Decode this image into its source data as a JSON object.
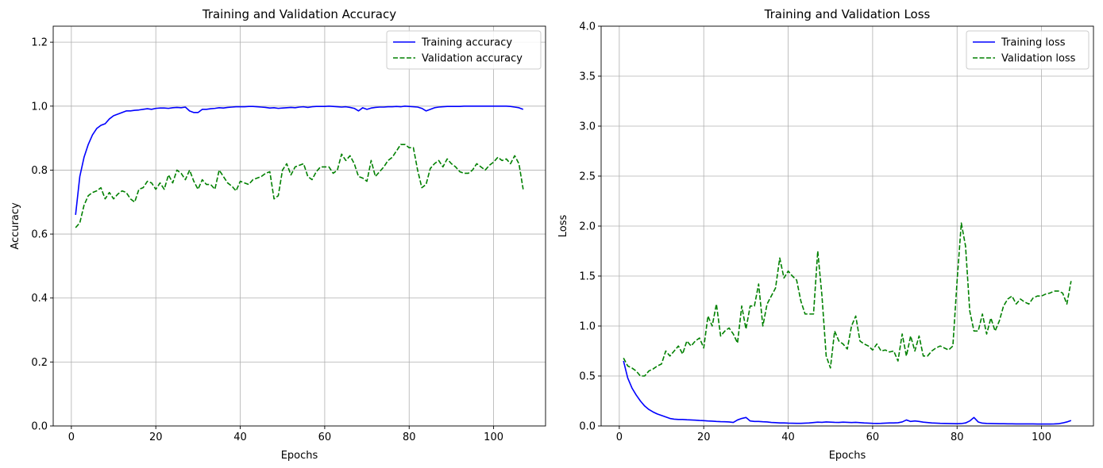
{
  "chart_data": [
    {
      "type": "line",
      "title": "Training and Validation Accuracy",
      "xlabel": "Epochs",
      "ylabel": "Accuracy",
      "xlim": [
        -4.3,
        112.3
      ],
      "ylim": [
        0.0,
        1.25
      ],
      "xticks": [
        0,
        20,
        40,
        60,
        80,
        100
      ],
      "yticks": [
        0.0,
        0.2,
        0.4,
        0.6,
        0.8,
        1.0,
        1.2
      ],
      "xtick_labels": [
        "0",
        "20",
        "40",
        "60",
        "80",
        "100"
      ],
      "ytick_labels": [
        "0.0",
        "0.2",
        "0.4",
        "0.6",
        "0.8",
        "1.0",
        "1.2"
      ],
      "grid": true,
      "legend_position": "upper-right",
      "series": [
        {
          "name": "Training accuracy",
          "color": "#0000ff",
          "dash": "solid",
          "x_start": 1,
          "values": [
            0.66,
            0.78,
            0.84,
            0.88,
            0.91,
            0.93,
            0.94,
            0.945,
            0.96,
            0.97,
            0.975,
            0.98,
            0.985,
            0.985,
            0.987,
            0.988,
            0.99,
            0.992,
            0.99,
            0.993,
            0.994,
            0.994,
            0.993,
            0.995,
            0.996,
            0.995,
            0.997,
            0.985,
            0.98,
            0.98,
            0.99,
            0.99,
            0.992,
            0.993,
            0.995,
            0.994,
            0.996,
            0.997,
            0.998,
            0.998,
            0.998,
            0.999,
            0.999,
            0.998,
            0.997,
            0.996,
            0.994,
            0.995,
            0.993,
            0.994,
            0.995,
            0.996,
            0.995,
            0.997,
            0.998,
            0.996,
            0.998,
            0.999,
            0.999,
            0.999,
            1.0,
            0.999,
            0.998,
            0.997,
            0.998,
            0.996,
            0.993,
            0.985,
            0.995,
            0.99,
            0.994,
            0.996,
            0.997,
            0.997,
            0.998,
            0.998,
            0.999,
            0.998,
            1.0,
            0.999,
            0.998,
            0.997,
            0.993,
            0.985,
            0.99,
            0.995,
            0.997,
            0.998,
            0.999,
            0.999,
            0.999,
            0.999,
            1.0,
            1.0,
            1.0,
            1.0,
            1.0,
            1.0,
            1.0,
            1.0,
            1.0,
            1.0,
            1.0,
            0.999,
            0.997,
            0.995,
            0.99
          ]
        },
        {
          "name": "Validation accuracy",
          "color": "#008000",
          "dash": "dashed",
          "x_start": 1,
          "values": [
            0.62,
            0.635,
            0.69,
            0.72,
            0.73,
            0.735,
            0.745,
            0.71,
            0.73,
            0.71,
            0.725,
            0.735,
            0.73,
            0.71,
            0.7,
            0.74,
            0.745,
            0.765,
            0.76,
            0.74,
            0.76,
            0.74,
            0.785,
            0.76,
            0.8,
            0.79,
            0.77,
            0.8,
            0.765,
            0.74,
            0.77,
            0.755,
            0.755,
            0.74,
            0.8,
            0.78,
            0.76,
            0.75,
            0.735,
            0.765,
            0.76,
            0.755,
            0.77,
            0.775,
            0.78,
            0.79,
            0.795,
            0.71,
            0.72,
            0.8,
            0.82,
            0.785,
            0.81,
            0.815,
            0.82,
            0.78,
            0.77,
            0.795,
            0.81,
            0.81,
            0.81,
            0.79,
            0.8,
            0.85,
            0.83,
            0.845,
            0.82,
            0.78,
            0.775,
            0.765,
            0.83,
            0.78,
            0.795,
            0.81,
            0.83,
            0.84,
            0.86,
            0.88,
            0.88,
            0.87,
            0.87,
            0.8,
            0.745,
            0.755,
            0.805,
            0.82,
            0.83,
            0.81,
            0.835,
            0.82,
            0.81,
            0.795,
            0.79,
            0.79,
            0.8,
            0.82,
            0.81,
            0.8,
            0.815,
            0.825,
            0.84,
            0.83,
            0.835,
            0.82,
            0.845,
            0.82,
            0.74
          ]
        }
      ]
    },
    {
      "type": "line",
      "title": "Training and Validation Loss",
      "xlabel": "Epochs",
      "ylabel": "Loss",
      "xlim": [
        -4.3,
        112.3
      ],
      "ylim": [
        0.0,
        4.0
      ],
      "xticks": [
        0,
        20,
        40,
        60,
        80,
        100
      ],
      "yticks": [
        0.0,
        0.5,
        1.0,
        1.5,
        2.0,
        2.5,
        3.0,
        3.5,
        4.0
      ],
      "xtick_labels": [
        "0",
        "20",
        "40",
        "60",
        "80",
        "100"
      ],
      "ytick_labels": [
        "0.0",
        "0.5",
        "1.0",
        "1.5",
        "2.0",
        "2.5",
        "3.0",
        "3.5",
        "4.0"
      ],
      "grid": true,
      "legend_position": "upper-right",
      "series": [
        {
          "name": "Training loss",
          "color": "#0000ff",
          "dash": "solid",
          "x_start": 1,
          "values": [
            0.65,
            0.48,
            0.38,
            0.31,
            0.25,
            0.2,
            0.165,
            0.14,
            0.12,
            0.105,
            0.09,
            0.075,
            0.068,
            0.065,
            0.065,
            0.062,
            0.06,
            0.058,
            0.055,
            0.053,
            0.05,
            0.048,
            0.045,
            0.043,
            0.042,
            0.04,
            0.035,
            0.06,
            0.075,
            0.085,
            0.05,
            0.045,
            0.045,
            0.042,
            0.04,
            0.035,
            0.033,
            0.03,
            0.03,
            0.028,
            0.027,
            0.026,
            0.026,
            0.028,
            0.03,
            0.034,
            0.038,
            0.036,
            0.04,
            0.038,
            0.036,
            0.035,
            0.038,
            0.036,
            0.034,
            0.036,
            0.033,
            0.03,
            0.028,
            0.026,
            0.025,
            0.026,
            0.028,
            0.03,
            0.03,
            0.032,
            0.04,
            0.06,
            0.045,
            0.05,
            0.045,
            0.038,
            0.034,
            0.03,
            0.028,
            0.026,
            0.025,
            0.024,
            0.023,
            0.022,
            0.024,
            0.03,
            0.05,
            0.085,
            0.04,
            0.028,
            0.025,
            0.024,
            0.023,
            0.022,
            0.022,
            0.021,
            0.021,
            0.02,
            0.02,
            0.02,
            0.02,
            0.02,
            0.019,
            0.019,
            0.019,
            0.019,
            0.02,
            0.022,
            0.03,
            0.04,
            0.055
          ]
        },
        {
          "name": "Validation loss",
          "color": "#008000",
          "dash": "dashed",
          "x_start": 1,
          "values": [
            0.68,
            0.6,
            0.58,
            0.55,
            0.5,
            0.5,
            0.55,
            0.57,
            0.6,
            0.62,
            0.75,
            0.7,
            0.75,
            0.8,
            0.72,
            0.85,
            0.8,
            0.85,
            0.88,
            0.78,
            1.1,
            1.0,
            1.22,
            0.9,
            0.95,
            0.98,
            0.92,
            0.83,
            1.2,
            0.97,
            1.2,
            1.2,
            1.42,
            1.0,
            1.22,
            1.3,
            1.38,
            1.68,
            1.48,
            1.55,
            1.5,
            1.46,
            1.25,
            1.12,
            1.12,
            1.12,
            1.75,
            1.3,
            0.7,
            0.58,
            0.95,
            0.85,
            0.82,
            0.77,
            1.0,
            1.1,
            0.85,
            0.82,
            0.8,
            0.76,
            0.82,
            0.75,
            0.76,
            0.74,
            0.75,
            0.65,
            0.92,
            0.7,
            0.9,
            0.75,
            0.9,
            0.7,
            0.7,
            0.75,
            0.78,
            0.8,
            0.78,
            0.76,
            0.8,
            1.45,
            2.03,
            1.8,
            1.15,
            0.95,
            0.95,
            1.12,
            0.92,
            1.08,
            0.95,
            1.05,
            1.2,
            1.27,
            1.3,
            1.22,
            1.27,
            1.24,
            1.22,
            1.28,
            1.3,
            1.3,
            1.32,
            1.33,
            1.35,
            1.35,
            1.33,
            1.22,
            1.45
          ]
        }
      ]
    }
  ]
}
